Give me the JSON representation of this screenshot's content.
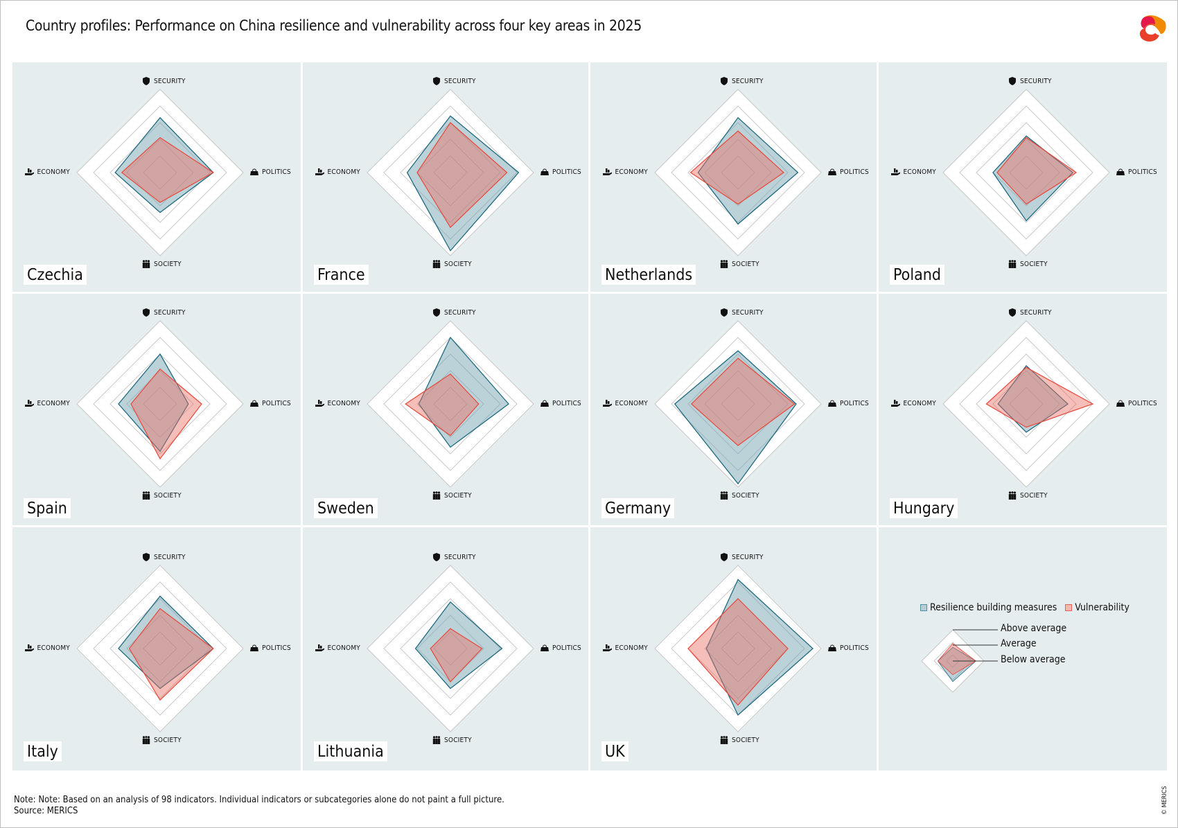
{
  "title": "Country profiles: Performance on China resilience and vulnerability across four key areas in 2025",
  "note": "Note: Note: Based on an analysis of 98 indicators. Individual indicators or subcategories alone do not paint a full picture.",
  "source": "Source: MERICS",
  "copyright": "© MERICS",
  "colors": {
    "panel_bg": "#e6edef",
    "resilience_stroke": "#1f6a80",
    "resilience_fill": "#b7ced6",
    "vulnerability_stroke": "#e8473a",
    "vulnerability_fill": "#f2b8b1"
  },
  "icons": {
    "security": "shield-icon",
    "politics": "handbag-icon",
    "society": "people-icon",
    "economy": "economy-hand-icon"
  },
  "legend": {
    "resilience": "Resilience building measures",
    "vulnerability": "Vulnerability",
    "above": "Above average",
    "average": "Average",
    "below": "Below average",
    "example": {
      "resilience": {
        "security": 2.2,
        "politics": 3.7,
        "society": 3.3,
        "economy": 2.4
      },
      "vulnerability": {
        "security": 2.8,
        "politics": 3.7,
        "society": 2.2,
        "economy": 2.4
      }
    }
  },
  "chart_data": {
    "type": "radar",
    "axes": [
      "SECURITY",
      "POLITICS",
      "SOCIETY",
      "ECONOMY"
    ],
    "levels": 5,
    "range": [
      0,
      5
    ],
    "series": [
      "Resilience building measures",
      "Vulnerability"
    ],
    "countries": [
      {
        "name": "Czechia",
        "resilience": {
          "security": 3.3,
          "politics": 3.2,
          "society": 2.4,
          "economy": 2.7
        },
        "vulnerability": {
          "security": 2.1,
          "politics": 3.2,
          "society": 1.8,
          "economy": 2.3
        }
      },
      {
        "name": "France",
        "resilience": {
          "security": 3.4,
          "politics": 4.1,
          "society": 4.7,
          "economy": 2.6
        },
        "vulnerability": {
          "security": 3.0,
          "politics": 3.4,
          "society": 3.3,
          "economy": 2.0
        }
      },
      {
        "name": "Netherlands",
        "resilience": {
          "security": 3.3,
          "politics": 3.6,
          "society": 3.1,
          "economy": 2.4
        },
        "vulnerability": {
          "security": 2.5,
          "politics": 2.75,
          "society": 1.9,
          "economy": 2.85
        }
      },
      {
        "name": "Poland",
        "resilience": {
          "security": 2.2,
          "politics": 2.8,
          "society": 2.9,
          "economy": 2.0
        },
        "vulnerability": {
          "security": 2.1,
          "politics": 3.0,
          "society": 1.9,
          "economy": 1.75
        }
      },
      {
        "name": "Spain",
        "resilience": {
          "security": 3.0,
          "politics": 1.7,
          "society": 2.85,
          "economy": 2.5
        },
        "vulnerability": {
          "security": 2.1,
          "politics": 2.5,
          "society": 3.3,
          "economy": 1.75
        }
      },
      {
        "name": "Sweden",
        "resilience": {
          "security": 4.0,
          "politics": 3.5,
          "society": 2.6,
          "economy": 1.9
        },
        "vulnerability": {
          "security": 1.8,
          "politics": 1.7,
          "society": 1.9,
          "economy": 2.7
        }
      },
      {
        "name": "Germany",
        "resilience": {
          "security": 3.2,
          "politics": 3.5,
          "society": 4.8,
          "economy": 3.8
        },
        "vulnerability": {
          "security": 2.75,
          "politics": 3.4,
          "society": 2.5,
          "economy": 2.8
        }
      },
      {
        "name": "Hungary",
        "resilience": {
          "security": 2.3,
          "politics": 2.5,
          "society": 1.7,
          "economy": 1.7
        },
        "vulnerability": {
          "security": 2.2,
          "politics": 4.0,
          "society": 1.4,
          "economy": 2.4
        }
      },
      {
        "name": "Italy",
        "resilience": {
          "security": 3.15,
          "politics": 3.2,
          "society": 2.4,
          "economy": 2.5
        },
        "vulnerability": {
          "security": 2.4,
          "politics": 3.2,
          "society": 3.1,
          "economy": 1.85
        }
      },
      {
        "name": "Lithuania",
        "resilience": {
          "security": 2.8,
          "politics": 3.1,
          "society": 2.4,
          "economy": 2.1
        },
        "vulnerability": {
          "security": 1.2,
          "politics": 1.9,
          "society": 2.0,
          "economy": 1.2
        }
      },
      {
        "name": "UK",
        "resilience": {
          "security": 4.15,
          "politics": 4.5,
          "society": 4.0,
          "economy": 1.9
        },
        "vulnerability": {
          "security": 3.0,
          "politics": 3.0,
          "society": 3.4,
          "economy": 3.0
        }
      }
    ]
  }
}
